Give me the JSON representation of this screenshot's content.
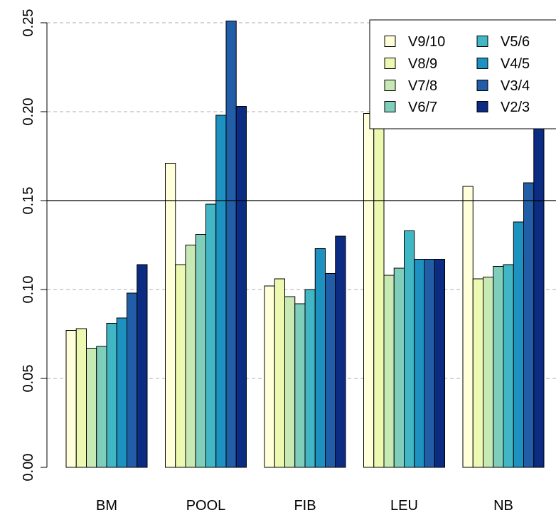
{
  "chart_data": {
    "type": "bar",
    "categories": [
      "BM",
      "POOL",
      "FIB",
      "LEU",
      "NB"
    ],
    "series": [
      {
        "name": "V9/10",
        "color": "#FFFFD9",
        "values": [
          0.077,
          0.171,
          0.102,
          0.199,
          0.158
        ]
      },
      {
        "name": "V8/9",
        "color": "#EDF8B1",
        "values": [
          0.078,
          0.114,
          0.106,
          0.192,
          0.106
        ]
      },
      {
        "name": "V7/8",
        "color": "#C7E9B4",
        "values": [
          0.067,
          0.125,
          0.096,
          0.108,
          0.107
        ]
      },
      {
        "name": "V6/7",
        "color": "#7FCDBB",
        "values": [
          0.068,
          0.131,
          0.092,
          0.112,
          0.113
        ]
      },
      {
        "name": "V5/6",
        "color": "#41B6C4",
        "values": [
          0.081,
          0.148,
          0.1,
          0.133,
          0.114
        ]
      },
      {
        "name": "V4/5",
        "color": "#1D91C0",
        "values": [
          0.084,
          0.198,
          0.123,
          0.117,
          0.138
        ]
      },
      {
        "name": "V3/4",
        "color": "#225EA8",
        "values": [
          0.098,
          0.251,
          0.109,
          0.117,
          0.16
        ]
      },
      {
        "name": "V2/3",
        "color": "#0C2C84",
        "values": [
          0.114,
          0.203,
          0.13,
          0.117,
          0.2
        ]
      }
    ],
    "ylim": [
      0,
      0.25
    ],
    "yticks": [
      "0.00",
      "0.05",
      "0.10",
      "0.15",
      "0.20",
      "0.25"
    ],
    "reference_line": 0.15,
    "grid": "dashed horizontal",
    "legend_position": "top-right"
  }
}
